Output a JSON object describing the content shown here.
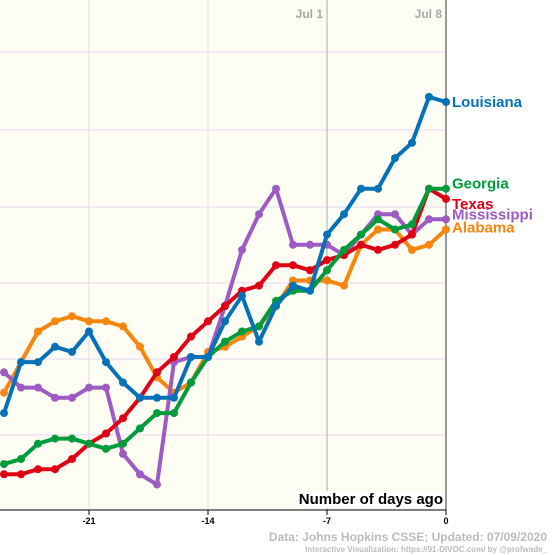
{
  "chart_data": {
    "type": "line",
    "xlabel": "Number of days ago",
    "x_ticks": [
      -21,
      -14,
      -7,
      0
    ],
    "date_markers": [
      {
        "day": -7,
        "label": "Jul 1"
      },
      {
        "day": 0,
        "label": "Jul 8"
      }
    ],
    "xlim": [
      -26,
      0
    ],
    "ylim": [
      0,
      1
    ],
    "grid": true,
    "colors": {
      "Louisiana": "#0572b8",
      "Georgia": "#009b3b",
      "Texas": "#e00013",
      "Mississippi": "#9d5bc4",
      "Alabama": "#f7860f"
    },
    "series": [
      {
        "name": "Louisiana",
        "x": [
          -26,
          -25,
          -24,
          -23,
          -22,
          -21,
          -20,
          -19,
          -18,
          -17,
          -16,
          -15,
          -14,
          -13,
          -12,
          -11,
          -10,
          -9,
          -8,
          -7,
          -6,
          -5,
          -4,
          -3,
          -2,
          -1,
          0
        ],
        "y": [
          0.19,
          0.29,
          0.29,
          0.32,
          0.31,
          0.35,
          0.29,
          0.25,
          0.22,
          0.22,
          0.22,
          0.3,
          0.3,
          0.37,
          0.42,
          0.33,
          0.4,
          0.44,
          0.43,
          0.54,
          0.58,
          0.63,
          0.63,
          0.69,
          0.72,
          0.81,
          0.8
        ]
      },
      {
        "name": "Georgia",
        "x": [
          -26,
          -25,
          -24,
          -23,
          -22,
          -21,
          -20,
          -19,
          -18,
          -17,
          -16,
          -15,
          -14,
          -13,
          -12,
          -11,
          -10,
          -9,
          -8,
          -7,
          -6,
          -5,
          -4,
          -3,
          -2,
          -1,
          0
        ],
        "y": [
          0.09,
          0.1,
          0.13,
          0.14,
          0.14,
          0.13,
          0.12,
          0.13,
          0.16,
          0.19,
          0.19,
          0.25,
          0.3,
          0.33,
          0.35,
          0.36,
          0.41,
          0.43,
          0.43,
          0.47,
          0.51,
          0.54,
          0.57,
          0.55,
          0.56,
          0.63,
          0.63
        ]
      },
      {
        "name": "Texas",
        "x": [
          -26,
          -25,
          -24,
          -23,
          -22,
          -21,
          -20,
          -19,
          -18,
          -17,
          -16,
          -15,
          -14,
          -13,
          -12,
          -11,
          -10,
          -9,
          -8,
          -7,
          -6,
          -5,
          -4,
          -3,
          -2,
          -1,
          0
        ],
        "y": [
          0.07,
          0.07,
          0.08,
          0.08,
          0.1,
          0.13,
          0.15,
          0.18,
          0.22,
          0.27,
          0.3,
          0.34,
          0.37,
          0.4,
          0.43,
          0.44,
          0.48,
          0.48,
          0.47,
          0.49,
          0.5,
          0.52,
          0.51,
          0.52,
          0.54,
          0.63,
          0.61
        ]
      },
      {
        "name": "Mississippi",
        "x": [
          -26,
          -25,
          -24,
          -23,
          -22,
          -21,
          -20,
          -19,
          -18,
          -17,
          -16,
          -15,
          -14,
          -13,
          -12,
          -11,
          -10,
          -9,
          -8,
          -7,
          -6,
          -5,
          -4,
          -3,
          -2,
          -1,
          0
        ],
        "y": [
          0.27,
          0.24,
          0.24,
          0.22,
          0.22,
          0.24,
          0.24,
          0.11,
          0.07,
          0.05,
          0.29,
          0.3,
          0.3,
          0.4,
          0.51,
          0.58,
          0.63,
          0.52,
          0.52,
          0.52,
          0.5,
          0.54,
          0.58,
          0.58,
          0.54,
          0.57,
          0.57
        ]
      },
      {
        "name": "Alabama",
        "x": [
          -26,
          -25,
          -24,
          -23,
          -22,
          -21,
          -20,
          -19,
          -18,
          -17,
          -16,
          -15,
          -14,
          -13,
          -12,
          -11,
          -10,
          -9,
          -8,
          -7,
          -6,
          -5,
          -4,
          -3,
          -2,
          -1,
          0
        ],
        "y": [
          0.23,
          0.29,
          0.35,
          0.37,
          0.38,
          0.37,
          0.37,
          0.36,
          0.32,
          0.26,
          0.23,
          0.25,
          0.31,
          0.32,
          0.34,
          0.36,
          0.4,
          0.45,
          0.45,
          0.45,
          0.44,
          0.52,
          0.55,
          0.55,
          0.51,
          0.52,
          0.55
        ]
      }
    ]
  },
  "credits": {
    "source": "Data: Johns Hopkins CSSE; Updated: 07/09/2020",
    "visualization": "Interactive Visualization: https://91-DIVOC.com/ by @profwade_"
  }
}
